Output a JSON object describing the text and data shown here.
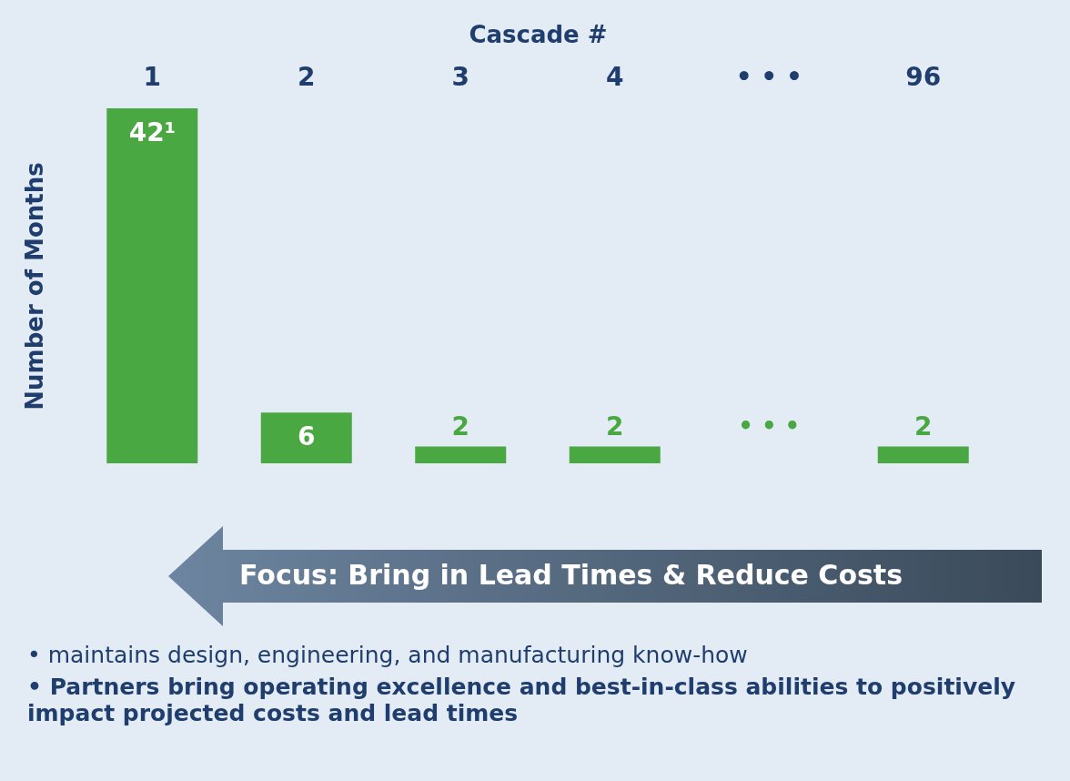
{
  "chart_data": {
    "type": "bar",
    "xlabel": "Cascade #",
    "ylabel": "Number of Months",
    "categories": [
      "1",
      "2",
      "3",
      "4",
      "• • •",
      "96"
    ],
    "values": [
      42,
      6,
      2,
      2,
      null,
      2
    ],
    "value_labels": [
      "42¹",
      "6",
      "2",
      "2",
      null,
      "2"
    ],
    "color": "#4aa842",
    "ylim": [
      0,
      42
    ],
    "tick_labels": "x",
    "grid": false,
    "annotations": [
      "• • •",
      "Focus: Bring in Lead Times & Reduce Costs",
      "• maintains design, engineering, and manufacturing know-how",
      "• Partners bring operating excellence and best-in-class abilities to positively impact projected costs and lead times"
    ]
  }
}
